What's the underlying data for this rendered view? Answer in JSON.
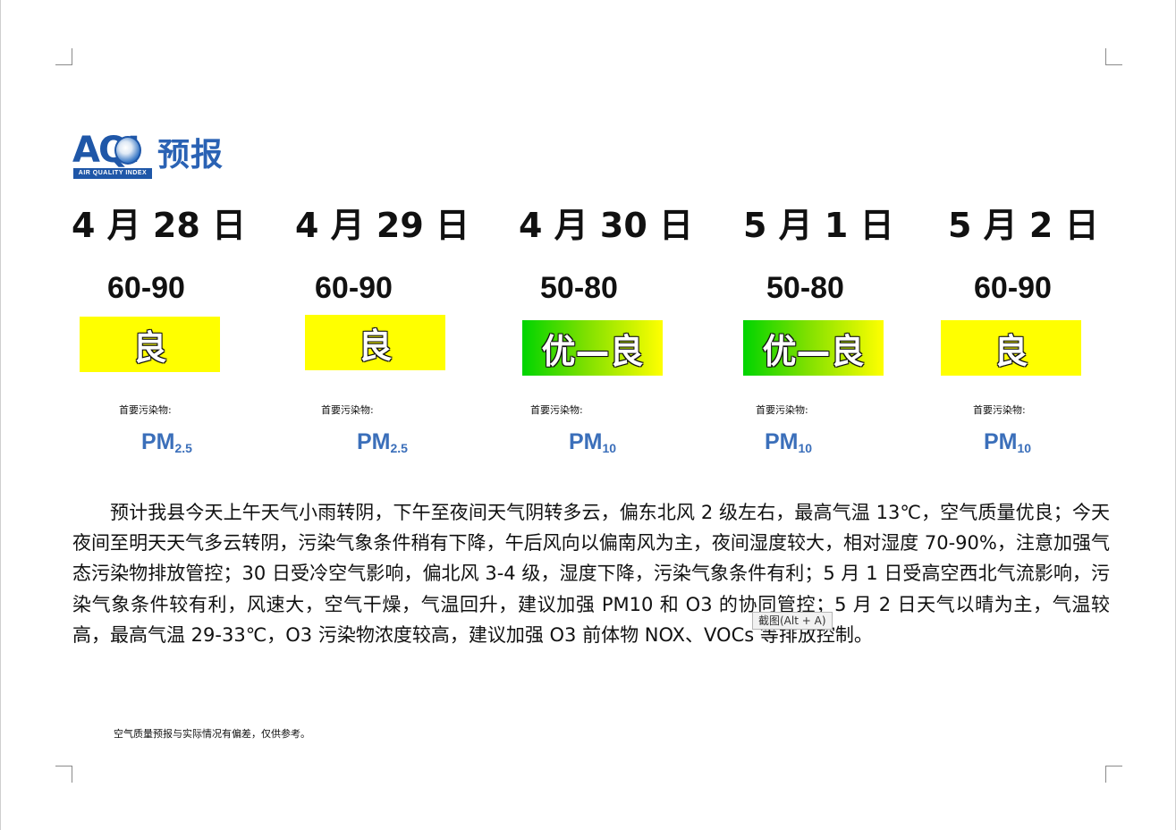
{
  "logo": {
    "mark": "AQI",
    "sub": "AIR QUALITY INDEX",
    "title": "预报"
  },
  "days": [
    {
      "date": "4 月 28 日",
      "range": "60-90",
      "level": "良",
      "level_color": "#ffff00",
      "pollutant_label": "首要污染物:",
      "pollutant_main": "PM",
      "pollutant_sub": "2.5"
    },
    {
      "date": "4 月 29 日",
      "range": "60-90",
      "level": "良",
      "level_color": "#ffff00",
      "pollutant_label": "首要污染物:",
      "pollutant_main": "PM",
      "pollutant_sub": "2.5"
    },
    {
      "date": "4 月 30 日",
      "range": "50-80",
      "level": "优—良",
      "level_color": "gradient-green-yellow",
      "pollutant_label": "首要污染物:",
      "pollutant_main": "PM",
      "pollutant_sub": "10"
    },
    {
      "date": "5 月 1 日",
      "range": "50-80",
      "level": "优—良",
      "level_color": "gradient-green-yellow",
      "pollutant_label": "首要污染物:",
      "pollutant_main": "PM",
      "pollutant_sub": "10"
    },
    {
      "date": "5 月 2 日",
      "range": "60-90",
      "level": "良",
      "level_color": "#ffff00",
      "pollutant_label": "首要污染物:",
      "pollutant_main": "PM",
      "pollutant_sub": "10"
    }
  ],
  "description": "预计我县今天上午天气小雨转阴，下午至夜间天气阴转多云，偏东北风 2 级左右，最高气温 13℃，空气质量优良；今天夜间至明天天气多云转阴，污染气象条件稍有下降，午后风向以偏南风为主，夜间湿度较大，相对湿度 70-90%，注意加强气态污染物排放管控；30 日受冷空气影响，偏北风 3-4 级，湿度下降，污染气象条件有利；5 月 1 日受高空西北气流影响，污染气象条件较有利，风速大，空气干燥，气温回升，建议加强 PM10 和 O3 的协同管控；5 月 2 日天气以晴为主，气温较高，最高气温 29-33℃，O3 污染物浓度较高，建议加强 O3 前体物 NOX、VOCs 等排放控制。",
  "tooltip": "截图(Alt + A)",
  "footnote": "空气质量预报与实际情况有偏差，仅供参考。",
  "colors": {
    "logo_blue": "#1f57a8",
    "pollutant_blue": "#3b6fba",
    "good_yellow": "#ffff00",
    "excellent_green": "#00d400"
  }
}
